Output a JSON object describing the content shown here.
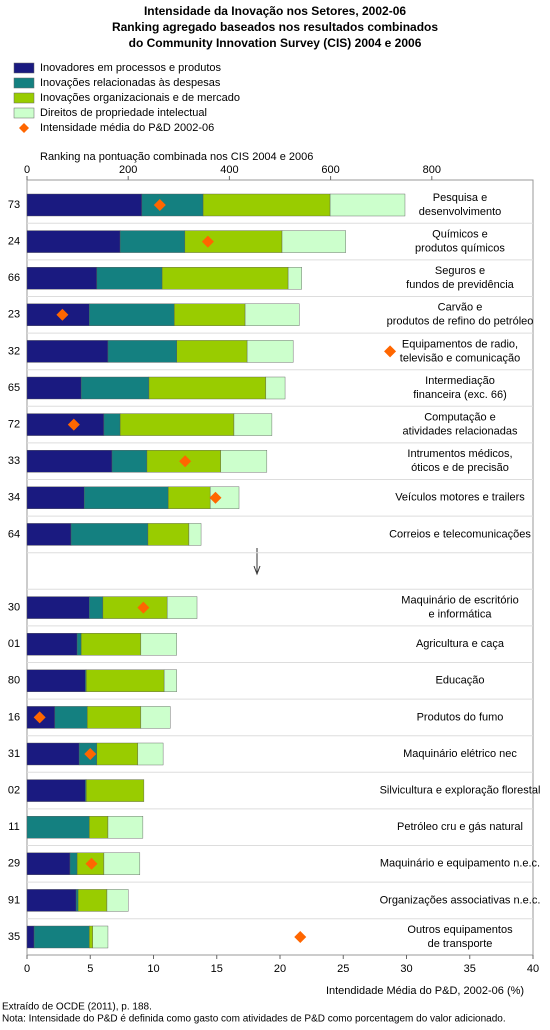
{
  "chart_data": {
    "type": "bar",
    "orientation": "horizontal",
    "stacked": true,
    "title": "Intensidade da Inovação nos Setores, 2002-06",
    "subtitle": [
      "Ranking agregado baseados nos resultados combinados",
      "do Community Innovation Survey (CIS) 2004 e 2006"
    ],
    "xlabel": "Ranking na pontuação combinada nos  CIS 2004 e 2006",
    "x2label": "Intendidade Média do P&D, 2002-06 (%)",
    "xlim": [
      0,
      1000
    ],
    "xticks": [
      0,
      200,
      400,
      600,
      800
    ],
    "x2lim": [
      0,
      40
    ],
    "x2ticks": [
      0,
      5,
      10,
      15,
      20,
      25,
      30,
      35,
      40
    ],
    "codes": [
      "73",
      "24",
      "66",
      "23",
      "32",
      "65",
      "72",
      "33",
      "34",
      "64",
      null,
      "30",
      "01",
      "80",
      "16",
      "31",
      "02",
      "11",
      "29",
      "91",
      "35"
    ],
    "categories": [
      [
        "Pesquisa e",
        "desenvolvimento"
      ],
      [
        "Químicos e",
        "produtos químicos"
      ],
      [
        "Seguros e",
        "fundos de previdência"
      ],
      [
        "Carvão e",
        "produtos de refino do petróleo"
      ],
      [
        "Equipamentos de radio,",
        "televisão e comunicação"
      ],
      [
        "Intermediação",
        "financeira (exc. 66)"
      ],
      [
        "Computação e",
        "atividades relacionadas"
      ],
      [
        "Intrumentos médicos,",
        "óticos e de precisão"
      ],
      [
        "Veículos motores e trailers"
      ],
      [
        "Correios e telecomunicações"
      ],
      null,
      [
        "Maquinário de escritório",
        "e informática"
      ],
      [
        "Agricultura e caça"
      ],
      [
        "Educação"
      ],
      [
        "Produtos do fumo"
      ],
      [
        "Maquinário elétrico nec"
      ],
      [
        "Silvicultura e exploração florestal"
      ],
      [
        "Petróleo cru e gás natural"
      ],
      [
        "Maquinário e equipamento n.e.c."
      ],
      [
        "Organizações associativas n.e.c."
      ],
      [
        "Outros equipamentos",
        "de transporte"
      ]
    ],
    "series": [
      {
        "name": "Inovadores em processos e produtos",
        "color": "#1a1a80",
        "values": [
          227,
          184,
          138,
          123,
          160,
          107,
          152,
          168,
          113,
          87,
          null,
          123,
          99,
          115,
          55,
          103,
          115,
          0,
          85,
          97,
          14
        ]
      },
      {
        "name": "Inovações relacionadas às despesas",
        "color": "#148080",
        "values": [
          121,
          128,
          129,
          168,
          136,
          134,
          32,
          69,
          166,
          152,
          null,
          27,
          8,
          2,
          64,
          35,
          2,
          123,
          14,
          4,
          109
        ]
      },
      {
        "name": "Inovações organizacionais e de mercado",
        "color": "#99cc00",
        "values": [
          251,
          192,
          249,
          140,
          139,
          231,
          225,
          146,
          83,
          81,
          null,
          127,
          118,
          154,
          106,
          81,
          114,
          37,
          53,
          57,
          7
        ]
      },
      {
        "name": "Direitos de propriedade intelectual",
        "color": "#ccffcc",
        "values": [
          148,
          126,
          27,
          107,
          91,
          38,
          75,
          91,
          57,
          24,
          null,
          59,
          71,
          25,
          58,
          50,
          0,
          69,
          71,
          42,
          30
        ]
      },
      {
        "name": "Intensidade média do P&D 2002-06",
        "color": "#ff6600",
        "axis": "x2",
        "type": "scatter",
        "values": [
          10.5,
          14.3,
          null,
          2.8,
          28.7,
          null,
          3.7,
          12.5,
          14.9,
          null,
          null,
          9.2,
          null,
          null,
          1.0,
          5.0,
          null,
          null,
          5.1,
          null,
          21.6
        ]
      }
    ],
    "notes": [
      "Extraído de OCDE (2011), p. 188.",
      "Nota: Intensidade do P&D é definida como gasto com atividades de P&D como porcentagem do valor adicionado."
    ]
  }
}
